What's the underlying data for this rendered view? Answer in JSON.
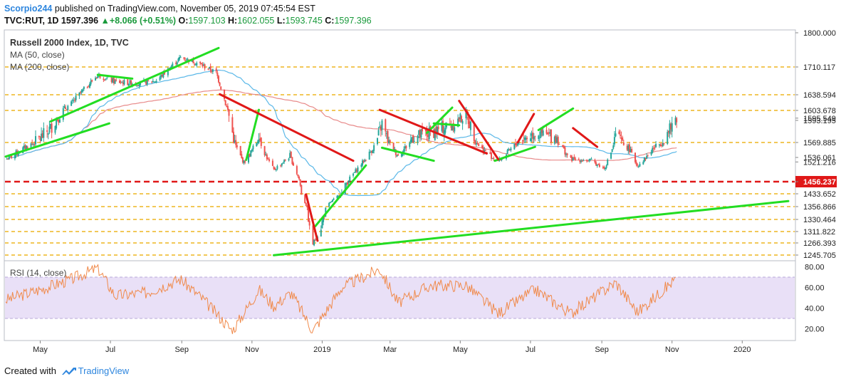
{
  "header": {
    "author": "Scorpio244",
    "published_text": "published on TradingView.com, November 05, 2019 07:45:54 EST",
    "symbol": "TVC:RUT, 1D",
    "last_price": "1597.396",
    "change": "+8.066 (+0.51%)",
    "open_label": "O:",
    "open": "1597.103",
    "high_label": "H:",
    "high": "1602.055",
    "low_label": "L:",
    "low": "1593.745",
    "close_label": "C:",
    "close": "1597.396"
  },
  "legend": {
    "title": "Russell 2000 Index, 1D, TVC",
    "ma50": "MA (50, close)",
    "ma200": "MA (200, close)",
    "rsi": "RSI (14, close)"
  },
  "footer": {
    "created_with": "Created with",
    "brand": "TradingView"
  },
  "colors": {
    "up": "#26a69a",
    "down": "#ef5350",
    "ma50": "#5bb8e8",
    "ma200": "#e88a8a",
    "green_trend": "#22dd22",
    "red_trend": "#e01818",
    "support_dash": "#f0c040",
    "key_level": "#e01818",
    "rsi_line": "#f08a4b",
    "rsi_band": "#e9e0f7",
    "brand": "#2e86de"
  },
  "chart_data": {
    "type": "candlestick",
    "title": "Russell 2000 Index, 1D, TVC",
    "x_ticks": [
      "May",
      "Jul",
      "Sep",
      "Nov",
      "2019",
      "Mar",
      "May",
      "Jul",
      "Sep",
      "Nov",
      "2020"
    ],
    "y_ticks": [
      "1800.000",
      "1710.117",
      "1638.594",
      "1603.678",
      "1595.549",
      "1593.195",
      "1569.885",
      "1536.061",
      "1521.216",
      "1456.237",
      "1433.652",
      "1356.866",
      "1330.464",
      "1311.822",
      "1266.393",
      "1245.705"
    ],
    "price_labels": [
      1800.0,
      1710.117,
      1638.594,
      1603.678,
      1595.549,
      1593.195,
      1569.885,
      1536.061,
      1521.216,
      1456.237,
      1433.652,
      1356.866,
      1330.464,
      1311.822,
      1266.393,
      1245.705
    ],
    "highlight_level": 1456.237,
    "support_levels": [
      1710.117,
      1638.594,
      1603.678,
      1569.885,
      1456.237,
      1433.652,
      1356.866,
      1330.464,
      1311.822,
      1266.393,
      1245.705
    ],
    "close_path": [
      [
        "2018-04-01",
        1530
      ],
      [
        "2018-04-20",
        1562
      ],
      [
        "2018-05-10",
        1585
      ],
      [
        "2018-05-28",
        1618
      ],
      [
        "2018-06-20",
        1690
      ],
      [
        "2018-07-05",
        1672
      ],
      [
        "2018-07-25",
        1668
      ],
      [
        "2018-08-10",
        1675
      ],
      [
        "2018-08-31",
        1735
      ],
      [
        "2018-09-15",
        1720
      ],
      [
        "2018-10-01",
        1695
      ],
      [
        "2018-10-10",
        1610
      ],
      [
        "2018-10-25",
        1520
      ],
      [
        "2018-11-07",
        1580
      ],
      [
        "2018-11-20",
        1495
      ],
      [
        "2018-12-04",
        1540
      ],
      [
        "2018-12-12",
        1465
      ],
      [
        "2018-12-24",
        1266
      ],
      [
        "2019-01-10",
        1395
      ],
      [
        "2019-02-05",
        1520
      ],
      [
        "2019-02-22",
        1590
      ],
      [
        "2019-03-08",
        1540
      ],
      [
        "2019-03-20",
        1575
      ],
      [
        "2019-04-05",
        1580
      ],
      [
        "2019-04-26",
        1590
      ],
      [
        "2019-05-06",
        1600
      ],
      [
        "2019-05-20",
        1555
      ],
      [
        "2019-06-03",
        1525
      ],
      [
        "2019-06-20",
        1570
      ],
      [
        "2019-07-05",
        1580
      ],
      [
        "2019-07-24",
        1575
      ],
      [
        "2019-08-05",
        1530
      ],
      [
        "2019-08-23",
        1525
      ],
      [
        "2019-09-03",
        1500
      ],
      [
        "2019-09-13",
        1580
      ],
      [
        "2019-09-25",
        1555
      ],
      [
        "2019-10-02",
        1510
      ],
      [
        "2019-10-15",
        1555
      ],
      [
        "2019-10-31",
        1585
      ],
      [
        "2019-11-05",
        1597.396
      ]
    ],
    "green_trendlines": [
      [
        [
          "2018-04-01",
          1538
        ],
        [
          "2018-06-30",
          1590
        ]
      ],
      [
        [
          "2018-05-10",
          1592
        ],
        [
          "2018-10-03",
          1760
        ]
      ],
      [
        [
          "2018-06-20",
          1690
        ],
        [
          "2018-07-20",
          1680
        ]
      ],
      [
        [
          "2018-10-27",
          1528
        ],
        [
          "2018-11-07",
          1605
        ]
      ],
      [
        [
          "2018-12-26",
          1320
        ],
        [
          "2019-02-08",
          1510
        ]
      ],
      [
        [
          "2018-11-20",
          1245
        ],
        [
          "2020-02-10",
          1390
        ]
      ],
      [
        [
          "2019-02-22",
          1558
        ],
        [
          "2019-04-08",
          1525
        ]
      ],
      [
        [
          "2019-04-02",
          1580
        ],
        [
          "2019-04-24",
          1610
        ]
      ],
      [
        [
          "2019-04-08",
          1590
        ],
        [
          "2019-04-30",
          1588
        ]
      ],
      [
        [
          "2019-05-31",
          1525
        ],
        [
          "2019-07-05",
          1560
        ]
      ],
      [
        [
          "2019-07-08",
          1583
        ],
        [
          "2019-08-07",
          1608
        ]
      ]
    ],
    "red_trendlines": [
      [
        [
          "2018-10-04",
          1640
        ],
        [
          "2019-01-28",
          1525
        ]
      ],
      [
        [
          "2018-12-18",
          1430
        ],
        [
          "2018-12-28",
          1275
        ]
      ],
      [
        [
          "2019-02-20",
          1605
        ],
        [
          "2019-05-24",
          1545
        ]
      ],
      [
        [
          "2019-04-30",
          1625
        ],
        [
          "2019-06-03",
          1530
        ]
      ],
      [
        [
          "2019-06-20",
          1570
        ],
        [
          "2019-07-04",
          1600
        ]
      ],
      [
        [
          "2019-08-07",
          1585
        ],
        [
          "2019-08-28",
          1560
        ]
      ]
    ],
    "rsi": {
      "label": "RSI (14, close)",
      "ticks": [
        "80.00",
        "60.00",
        "40.00",
        "20.00"
      ],
      "upper_band": 70,
      "lower_band": 30,
      "path": [
        [
          "2018-04-01",
          48
        ],
        [
          "2018-05-01",
          58
        ],
        [
          "2018-05-28",
          68
        ],
        [
          "2018-06-20",
          79
        ],
        [
          "2018-07-05",
          52
        ],
        [
          "2018-08-01",
          55
        ],
        [
          "2018-08-31",
          68
        ],
        [
          "2018-09-20",
          48
        ],
        [
          "2018-10-15",
          18
        ],
        [
          "2018-11-07",
          58
        ],
        [
          "2018-11-20",
          42
        ],
        [
          "2018-12-05",
          55
        ],
        [
          "2018-12-24",
          18
        ],
        [
          "2019-01-18",
          60
        ],
        [
          "2019-02-20",
          78
        ],
        [
          "2019-03-08",
          45
        ],
        [
          "2019-04-05",
          62
        ],
        [
          "2019-05-06",
          62
        ],
        [
          "2019-06-03",
          35
        ],
        [
          "2019-07-05",
          58
        ],
        [
          "2019-08-05",
          35
        ],
        [
          "2019-09-13",
          65
        ],
        [
          "2019-10-02",
          36
        ],
        [
          "2019-11-05",
          69
        ]
      ]
    }
  }
}
